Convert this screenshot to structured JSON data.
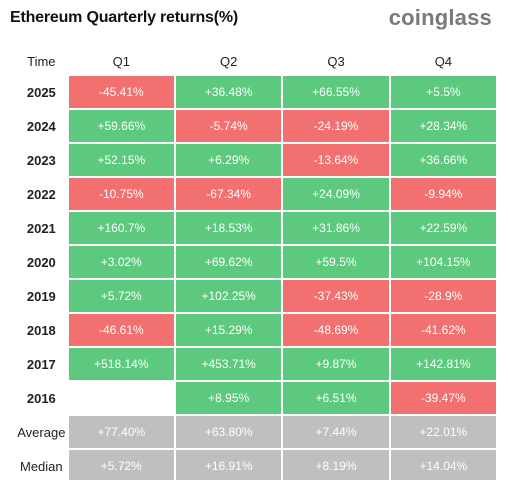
{
  "title": "Ethereum Quarterly returns(%)",
  "brand": "coinglass",
  "colors": {
    "positive": "#5dc97e",
    "negative": "#f27170",
    "stat": "#bfbfbf"
  },
  "chart_data": {
    "type": "table",
    "title": "Ethereum Quarterly returns(%)",
    "row_header": "Time",
    "columns": [
      "Q1",
      "Q2",
      "Q3",
      "Q4"
    ],
    "rows": [
      {
        "label": "2025",
        "values": [
          "-45.41%",
          "+36.48%",
          "+66.55%",
          "+5.5%"
        ]
      },
      {
        "label": "2024",
        "values": [
          "+59.66%",
          "-5.74%",
          "-24.19%",
          "+28.34%"
        ]
      },
      {
        "label": "2023",
        "values": [
          "+52.15%",
          "+6.29%",
          "-13.64%",
          "+36.66%"
        ]
      },
      {
        "label": "2022",
        "values": [
          "-10.75%",
          "-67.34%",
          "+24.09%",
          "-9.94%"
        ]
      },
      {
        "label": "2021",
        "values": [
          "+160.7%",
          "+18.53%",
          "+31.86%",
          "+22.59%"
        ]
      },
      {
        "label": "2020",
        "values": [
          "+3.02%",
          "+69.62%",
          "+59.5%",
          "+104.15%"
        ]
      },
      {
        "label": "2019",
        "values": [
          "+5.72%",
          "+102.25%",
          "-37.43%",
          "-28.9%"
        ]
      },
      {
        "label": "2018",
        "values": [
          "-46.61%",
          "+15.29%",
          "-48.69%",
          "-41.62%"
        ]
      },
      {
        "label": "2017",
        "values": [
          "+518.14%",
          "+453.71%",
          "+9.87%",
          "+142.81%"
        ]
      },
      {
        "label": "2016",
        "values": [
          "",
          "+8.95%",
          "+6.51%",
          "-39.47%"
        ]
      }
    ],
    "summary": [
      {
        "label": "Average",
        "values": [
          "+77.40%",
          "+63.80%",
          "+7.44%",
          "+22.01%"
        ]
      },
      {
        "label": "Median",
        "values": [
          "+5.72%",
          "+16.91%",
          "+8.19%",
          "+14.04%"
        ]
      }
    ]
  }
}
